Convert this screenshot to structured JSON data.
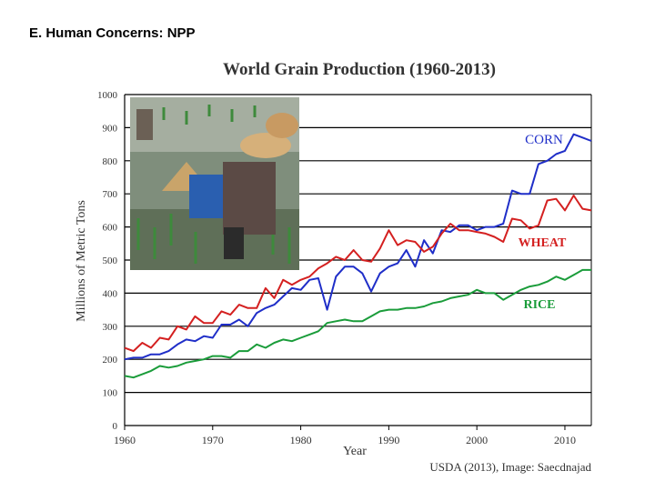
{
  "slide": {
    "title": "E. Human Concerns: NPP"
  },
  "chart_data": {
    "type": "line",
    "title": "World Grain Production (1960-2013)",
    "xlabel": "Year",
    "ylabel": "Millions of Metric Tons",
    "xlim": [
      1960,
      2013
    ],
    "ylim": [
      0,
      1000
    ],
    "xticks": [
      "1960",
      "1970",
      "1980",
      "1990",
      "2000",
      "2010"
    ],
    "yticks": [
      "0",
      "100",
      "200",
      "300",
      "400",
      "500",
      "600",
      "700",
      "800",
      "900",
      "1000"
    ],
    "grid": true,
    "source": "USDA (2013), Image: Saecdnajad",
    "colors": {
      "corn": "#1f2ec8",
      "wheat": "#d42020",
      "rice": "#1a9c3a",
      "grid": "#000000"
    },
    "series": [
      {
        "name": "CORN",
        "color": "#1f2ec8",
        "x": [
          1960,
          1961,
          1962,
          1963,
          1964,
          1965,
          1966,
          1967,
          1968,
          1969,
          1970,
          1971,
          1972,
          1973,
          1974,
          1975,
          1976,
          1977,
          1978,
          1979,
          1980,
          1981,
          1982,
          1983,
          1984,
          1985,
          1986,
          1987,
          1988,
          1989,
          1990,
          1991,
          1992,
          1993,
          1994,
          1995,
          1996,
          1997,
          1998,
          1999,
          2000,
          2001,
          2002,
          2003,
          2004,
          2005,
          2006,
          2007,
          2008,
          2009,
          2010,
          2011,
          2012,
          2013
        ],
        "values": [
          200,
          205,
          205,
          215,
          215,
          225,
          245,
          260,
          255,
          270,
          265,
          305,
          305,
          320,
          300,
          340,
          355,
          365,
          390,
          415,
          410,
          440,
          445,
          350,
          450,
          480,
          480,
          460,
          405,
          460,
          480,
          490,
          530,
          480,
          560,
          520,
          590,
          585,
          605,
          605,
          590,
          600,
          600,
          610,
          710,
          700,
          700,
          790,
          800,
          820,
          830,
          880,
          870,
          860
        ]
      },
      {
        "name": "WHEAT",
        "color": "#d42020",
        "x": [
          1960,
          1961,
          1962,
          1963,
          1964,
          1965,
          1966,
          1967,
          1968,
          1969,
          1970,
          1971,
          1972,
          1973,
          1974,
          1975,
          1976,
          1977,
          1978,
          1979,
          1980,
          1981,
          1982,
          1983,
          1984,
          1985,
          1986,
          1987,
          1988,
          1989,
          1990,
          1991,
          1992,
          1993,
          1994,
          1995,
          1996,
          1997,
          1998,
          1999,
          2000,
          2001,
          2002,
          2003,
          2004,
          2005,
          2006,
          2007,
          2008,
          2009,
          2010,
          2011,
          2012,
          2013
        ],
        "values": [
          235,
          225,
          250,
          235,
          265,
          260,
          300,
          290,
          330,
          310,
          310,
          345,
          335,
          365,
          355,
          355,
          415,
          385,
          440,
          425,
          440,
          450,
          475,
          490,
          510,
          500,
          530,
          500,
          495,
          535,
          590,
          545,
          560,
          555,
          525,
          540,
          580,
          610,
          590,
          590,
          585,
          580,
          570,
          555,
          625,
          620,
          595,
          605,
          680,
          685,
          650,
          695,
          655,
          650
        ]
      },
      {
        "name": "RICE",
        "color": "#1a9c3a",
        "x": [
          1960,
          1961,
          1962,
          1963,
          1964,
          1965,
          1966,
          1967,
          1968,
          1969,
          1970,
          1971,
          1972,
          1973,
          1974,
          1975,
          1976,
          1977,
          1978,
          1979,
          1980,
          1981,
          1982,
          1983,
          1984,
          1985,
          1986,
          1987,
          1988,
          1989,
          1990,
          1991,
          1992,
          1993,
          1994,
          1995,
          1996,
          1997,
          1998,
          1999,
          2000,
          2001,
          2002,
          2003,
          2004,
          2005,
          2006,
          2007,
          2008,
          2009,
          2010,
          2011,
          2012,
          2013
        ],
        "values": [
          150,
          145,
          155,
          165,
          180,
          175,
          180,
          190,
          195,
          200,
          210,
          210,
          205,
          225,
          225,
          245,
          235,
          250,
          260,
          255,
          265,
          275,
          285,
          310,
          315,
          320,
          315,
          315,
          330,
          345,
          350,
          350,
          355,
          355,
          360,
          370,
          375,
          385,
          390,
          395,
          410,
          400,
          400,
          380,
          395,
          410,
          420,
          425,
          435,
          450,
          440,
          455,
          470,
          470
        ]
      }
    ]
  }
}
